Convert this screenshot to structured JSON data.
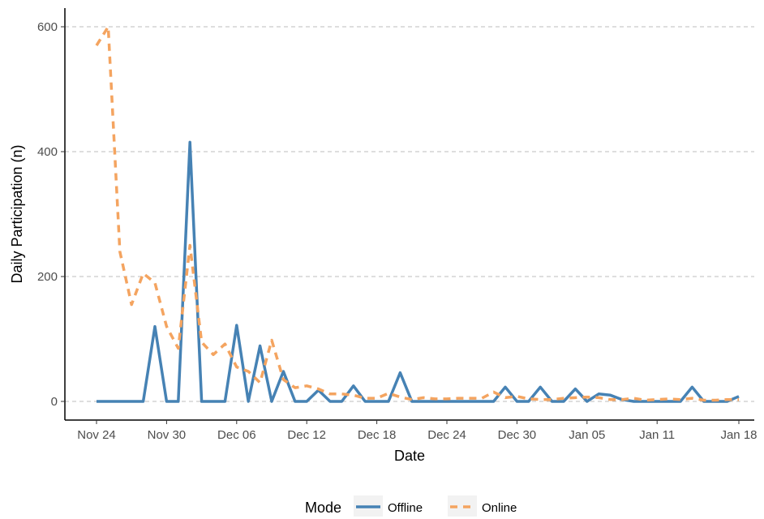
{
  "chart_data": {
    "type": "line",
    "xlabel": "Date",
    "ylabel": "Daily Participation (n)",
    "xlim": [
      "2023-11-24",
      "2024-01-18"
    ],
    "ylim": [
      0,
      600
    ],
    "x_ticks": [
      "Nov 24",
      "Nov 30",
      "Dec 06",
      "Dec 12",
      "Dec 18",
      "Dec 24",
      "Dec 30",
      "Jan 05",
      "Jan 11",
      "Jan 18"
    ],
    "y_ticks": [
      "0",
      "200",
      "400",
      "600"
    ],
    "grid": "horizontal-dashed",
    "legend": {
      "title": "Mode",
      "position": "bottom"
    },
    "x": [
      "2023-11-24",
      "2023-11-25",
      "2023-11-26",
      "2023-11-27",
      "2023-11-28",
      "2023-11-29",
      "2023-11-30",
      "2023-12-01",
      "2023-12-02",
      "2023-12-03",
      "2023-12-04",
      "2023-12-05",
      "2023-12-06",
      "2023-12-07",
      "2023-12-08",
      "2023-12-09",
      "2023-12-10",
      "2023-12-11",
      "2023-12-12",
      "2023-12-13",
      "2023-12-14",
      "2023-12-15",
      "2023-12-16",
      "2023-12-17",
      "2023-12-18",
      "2023-12-19",
      "2023-12-20",
      "2023-12-21",
      "2023-12-22",
      "2023-12-23",
      "2023-12-24",
      "2023-12-25",
      "2023-12-26",
      "2023-12-27",
      "2023-12-28",
      "2023-12-29",
      "2023-12-30",
      "2023-12-31",
      "2024-01-01",
      "2024-01-02",
      "2024-01-03",
      "2024-01-04",
      "2024-01-05",
      "2024-01-06",
      "2024-01-07",
      "2024-01-08",
      "2024-01-09",
      "2024-01-10",
      "2024-01-11",
      "2024-01-12",
      "2024-01-13",
      "2024-01-14",
      "2024-01-15",
      "2024-01-16",
      "2024-01-17",
      "2024-01-18"
    ],
    "series": [
      {
        "name": "Offline",
        "color": "#4682b4",
        "dash": "solid",
        "values": [
          0,
          0,
          0,
          0,
          0,
          120,
          0,
          0,
          415,
          0,
          0,
          0,
          122,
          0,
          89,
          0,
          48,
          0,
          0,
          18,
          0,
          0,
          25,
          0,
          0,
          0,
          46,
          0,
          0,
          0,
          0,
          0,
          0,
          0,
          0,
          23,
          0,
          0,
          23,
          0,
          0,
          20,
          0,
          12,
          10,
          3,
          0,
          0,
          0,
          0,
          0,
          23,
          0,
          0,
          0,
          8
        ]
      },
      {
        "name": "Online",
        "color": "#f4a460",
        "dash": "dashed",
        "values": [
          570,
          600,
          240,
          155,
          205,
          190,
          120,
          85,
          250,
          95,
          75,
          92,
          55,
          48,
          30,
          98,
          35,
          22,
          25,
          20,
          12,
          12,
          10,
          5,
          5,
          13,
          7,
          3,
          6,
          4,
          4,
          5,
          5,
          5,
          15,
          6,
          8,
          4,
          3,
          3,
          5,
          6,
          7,
          6,
          3,
          3,
          5,
          2,
          3,
          4,
          3,
          5,
          2,
          2,
          3,
          3
        ]
      }
    ]
  }
}
